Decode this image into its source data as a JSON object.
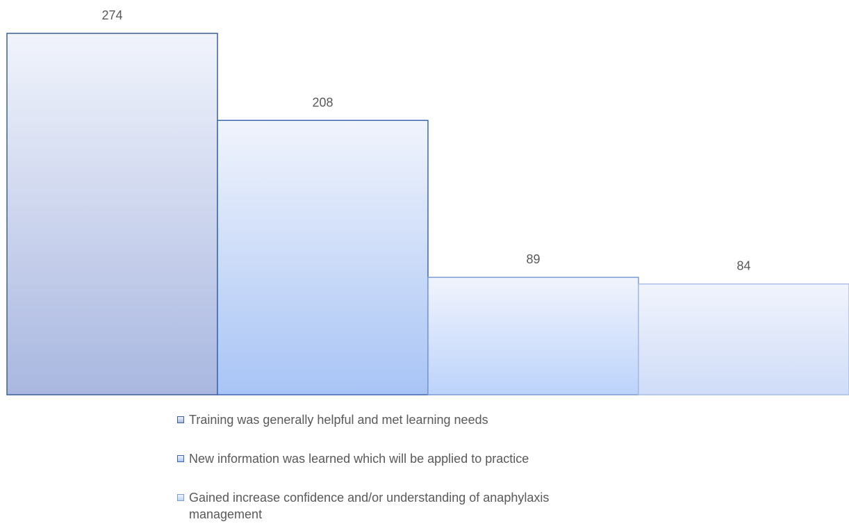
{
  "chart_data": {
    "type": "bar",
    "series": [
      {
        "name": "Training was generally helpful and met learning needs",
        "color": "#a9b7e0",
        "border": "#3b5e9a",
        "values": [
          274
        ]
      },
      {
        "name": "New information was learned which will be applied to practice",
        "color": "#a8c4f5",
        "border": "#3a66b0",
        "values": [
          208
        ]
      },
      {
        "name": "Gained increase confidence and/or understanding of anaphylaxis management",
        "color": "#bcd3fb",
        "border": "#7a9bd6",
        "values": [
          89
        ]
      },
      {
        "name": null,
        "color": "#cfdcf8",
        "border": "#a9bde6",
        "values": [
          84
        ]
      }
    ],
    "ylim": [
      0,
      274
    ],
    "grid": false,
    "legend": "bottom"
  }
}
